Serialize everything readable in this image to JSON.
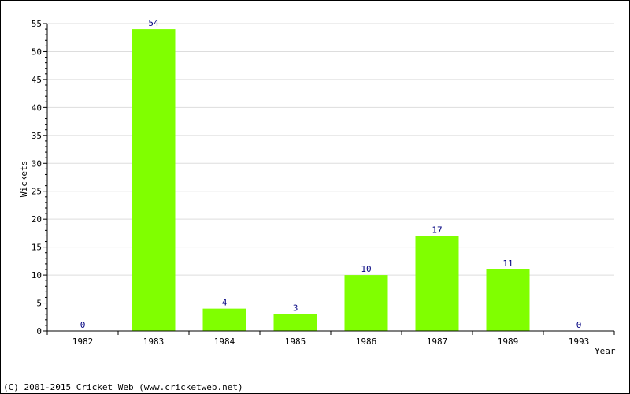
{
  "chart_data": {
    "type": "bar",
    "categories": [
      "1982",
      "1983",
      "1984",
      "1985",
      "1986",
      "1987",
      "1989",
      "1993"
    ],
    "values": [
      0,
      54,
      4,
      3,
      10,
      17,
      11,
      0
    ],
    "title": "",
    "xlabel": "Year",
    "ylabel": "Wickets",
    "ylim": [
      0,
      55
    ],
    "yticks": [
      0,
      5,
      10,
      15,
      20,
      25,
      30,
      35,
      40,
      45,
      50,
      55
    ],
    "grid": true,
    "data_labels": true,
    "colors": {
      "bar": "#80ff00",
      "data_label": "#000080",
      "grid": "#dddddd",
      "axis": "#000000"
    }
  },
  "footer": {
    "copyright": "(C) 2001-2015 Cricket Web (www.cricketweb.net)"
  }
}
